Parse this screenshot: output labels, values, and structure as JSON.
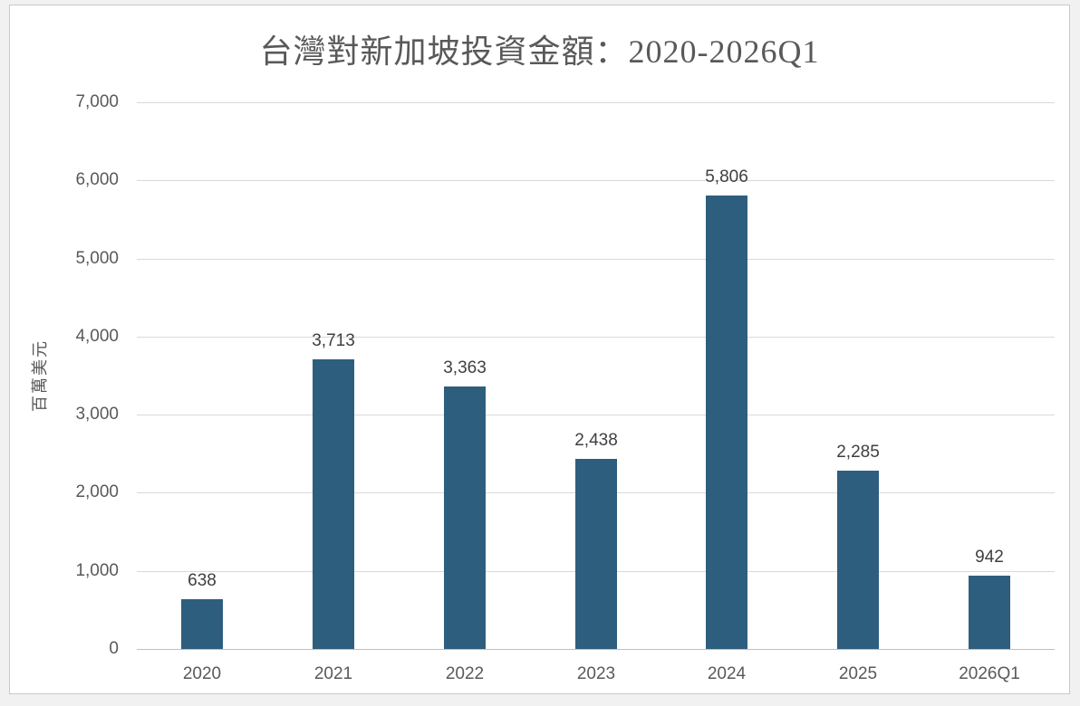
{
  "chart_data": {
    "type": "bar",
    "title": "台灣對新加坡投資金額：2020-2026Q1",
    "xlabel": "",
    "ylabel": "百萬美元",
    "categories": [
      "2020",
      "2021",
      "2022",
      "2023",
      "2024",
      "2025",
      "2026Q1"
    ],
    "values": [
      638,
      3713,
      3363,
      2438,
      5806,
      2285,
      942
    ],
    "data_labels": [
      "638",
      "3,713",
      "3,363",
      "2,438",
      "5,806",
      "2,285",
      "942"
    ],
    "ylim": [
      0,
      7000
    ],
    "ytick_step": 1000,
    "ytick_labels": [
      "0",
      "1,000",
      "2,000",
      "3,000",
      "4,000",
      "5,000",
      "6,000",
      "7,000"
    ],
    "grid": true,
    "legend": false,
    "bar_color": "#2e5e7e"
  },
  "colors": {
    "background": "#f1f1f2",
    "chart_fill": "#ffffff",
    "chart_border": "#c9c9c9",
    "gridline": "#d9d9d9",
    "axis_line": "#c1c1c1",
    "title_text": "#595959",
    "tick_text": "#595959",
    "data_label_text": "#3f3f3f"
  }
}
